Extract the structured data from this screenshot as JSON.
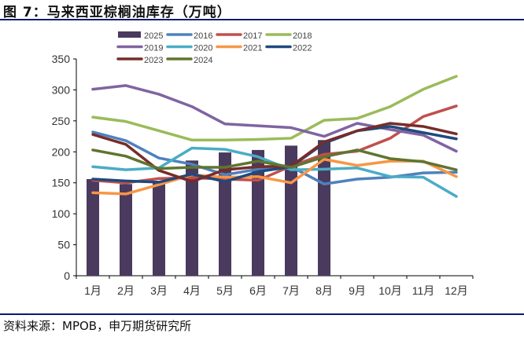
{
  "header": {
    "title": "图 7：马来西亚棕榈油库存（万吨）"
  },
  "footer": {
    "source": "资料来源：MPOB，申万期货研究所"
  },
  "chart_data": {
    "type": "bar+line",
    "title": "图 7：马来西亚棕榈油库存（万吨）",
    "categories": [
      "1月",
      "2月",
      "3月",
      "4月",
      "5月",
      "6月",
      "7月",
      "8月",
      "9月",
      "10月",
      "11月",
      "12月"
    ],
    "ylim": [
      0,
      350
    ],
    "yticks": [
      0,
      50,
      100,
      150,
      200,
      250,
      300,
      350
    ],
    "grid": false,
    "legend": "top",
    "bar_series": {
      "name": "2025",
      "color": "#4a3a5e",
      "values": [
        156,
        148,
        151,
        186,
        199,
        203,
        210,
        219
      ]
    },
    "series": [
      {
        "name": "2016",
        "color": "#4f81bd",
        "values": [
          232,
          218,
          190,
          180,
          163,
          172,
          176,
          148,
          156,
          159,
          166,
          167
        ]
      },
      {
        "name": "2017",
        "color": "#c0504d",
        "values": [
          154,
          150,
          157,
          158,
          156,
          154,
          177,
          196,
          201,
          222,
          257,
          274
        ]
      },
      {
        "name": "2018",
        "color": "#9bbb59",
        "values": [
          256,
          249,
          234,
          219,
          219,
          220,
          222,
          251,
          254,
          273,
          301,
          322
        ]
      },
      {
        "name": "2019",
        "color": "#8064a2",
        "values": [
          301,
          307,
          293,
          273,
          245,
          242,
          239,
          225,
          246,
          236,
          227,
          201
        ]
      },
      {
        "name": "2020",
        "color": "#4bacc6",
        "values": [
          176,
          171,
          174,
          206,
          204,
          192,
          171,
          172,
          174,
          160,
          159,
          128
        ]
      },
      {
        "name": "2021",
        "color": "#f79646",
        "values": [
          134,
          132,
          147,
          163,
          159,
          160,
          150,
          188,
          178,
          185,
          185,
          160
        ]
      },
      {
        "name": "2022",
        "color": "#1f497d",
        "values": [
          156,
          153,
          151,
          164,
          152,
          168,
          176,
          214,
          234,
          241,
          231,
          221
        ]
      },
      {
        "name": "2023",
        "color": "#772c2a",
        "values": [
          228,
          212,
          170,
          152,
          171,
          176,
          177,
          216,
          234,
          246,
          241,
          229
        ]
      },
      {
        "name": "2024",
        "color": "#5f7530",
        "values": [
          203,
          193,
          173,
          175,
          175,
          185,
          175,
          192,
          203,
          189,
          184,
          171
        ]
      }
    ]
  }
}
